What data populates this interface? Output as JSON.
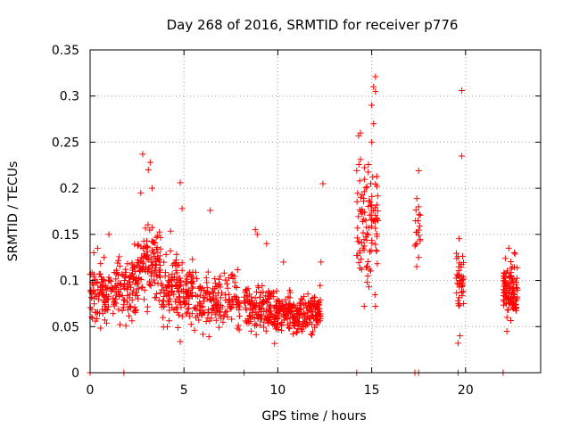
{
  "chart_data": {
    "type": "scatter",
    "title": "Day 268 of 2016, SRMTID for receiver p776",
    "xlabel": "GPS time / hours",
    "ylabel": "SRMTID / TECUs",
    "xlim": [
      0,
      24
    ],
    "ylim": [
      0,
      0.35
    ],
    "xticks": [
      0,
      5,
      10,
      15,
      20
    ],
    "xtick_labels": [
      "0",
      "5",
      "10",
      "15",
      "20"
    ],
    "yticks": [
      0,
      0.05,
      0.1,
      0.15,
      0.2,
      0.25,
      0.3,
      0.35
    ],
    "ytick_labels": [
      "0",
      "0.05",
      "0.1",
      "0.15",
      "0.2",
      "0.25",
      "0.3",
      "0.35"
    ],
    "grid": true,
    "marker": "plus",
    "series": [
      {
        "name": "SRMTID",
        "color": "#ff0000",
        "clusters": [
          {
            "x_range": [
              0.0,
              1.4
            ],
            "y_mean": 0.085,
            "y_sd": 0.025,
            "y_min": 0.022,
            "y_max": 0.14,
            "n": 110
          },
          {
            "x_range": [
              1.4,
              2.5
            ],
            "y_mean": 0.095,
            "y_sd": 0.03,
            "y_min": 0.035,
            "y_max": 0.165,
            "n": 90
          },
          {
            "x_range": [
              2.5,
              3.8
            ],
            "y_mean": 0.115,
            "y_sd": 0.035,
            "y_min": 0.04,
            "y_max": 0.21,
            "n": 120
          },
          {
            "x_range": [
              3.8,
              5.5
            ],
            "y_mean": 0.09,
            "y_sd": 0.03,
            "y_min": 0.03,
            "y_max": 0.175,
            "n": 150
          },
          {
            "x_range": [
              5.5,
              8.0
            ],
            "y_mean": 0.08,
            "y_sd": 0.025,
            "y_min": 0.025,
            "y_max": 0.16,
            "n": 160
          },
          {
            "x_range": [
              8.2,
              10.0
            ],
            "y_mean": 0.068,
            "y_sd": 0.02,
            "y_min": 0.03,
            "y_max": 0.155,
            "n": 160
          },
          {
            "x_range": [
              10.0,
              12.3
            ],
            "y_mean": 0.065,
            "y_sd": 0.017,
            "y_min": 0.025,
            "y_max": 0.12,
            "n": 210
          },
          {
            "x_range": [
              14.2,
              15.4
            ],
            "y_mean": 0.165,
            "y_sd": 0.05,
            "y_min": 0.07,
            "y_max": 0.29,
            "n": 100
          },
          {
            "x_range": [
              17.3,
              17.6
            ],
            "y_mean": 0.16,
            "y_sd": 0.025,
            "y_min": 0.115,
            "y_max": 0.2,
            "n": 16
          },
          {
            "x_range": [
              19.5,
              19.9
            ],
            "y_mean": 0.1,
            "y_sd": 0.03,
            "y_min": 0.03,
            "y_max": 0.165,
            "n": 40
          },
          {
            "x_range": [
              22.0,
              22.8
            ],
            "y_mean": 0.09,
            "y_sd": 0.025,
            "y_min": 0.04,
            "y_max": 0.14,
            "n": 110
          }
        ],
        "points": [
          [
            0.2,
            0.13
          ],
          [
            0.4,
            0.135
          ],
          [
            1.0,
            0.15
          ],
          [
            2.8,
            0.237
          ],
          [
            3.2,
            0.228
          ],
          [
            3.1,
            0.22
          ],
          [
            2.7,
            0.195
          ],
          [
            3.3,
            0.2
          ],
          [
            4.8,
            0.206
          ],
          [
            4.9,
            0.178
          ],
          [
            6.4,
            0.176
          ],
          [
            8.9,
            0.15
          ],
          [
            8.8,
            0.155
          ],
          [
            9.4,
            0.14
          ],
          [
            10.3,
            0.12
          ],
          [
            12.4,
            0.205
          ],
          [
            12.3,
            0.12
          ],
          [
            14.4,
            0.26
          ],
          [
            14.3,
            0.257
          ],
          [
            15.1,
            0.31
          ],
          [
            15.2,
            0.321
          ],
          [
            15.2,
            0.305
          ],
          [
            15.0,
            0.29
          ],
          [
            15.1,
            0.27
          ],
          [
            15.0,
            0.25
          ],
          [
            14.6,
            0.072
          ],
          [
            15.2,
            0.072
          ],
          [
            17.5,
            0.219
          ],
          [
            17.5,
            0.18
          ],
          [
            17.4,
            0.14
          ],
          [
            17.5,
            0.125
          ],
          [
            17.4,
            0.115
          ],
          [
            19.8,
            0.306
          ],
          [
            19.8,
            0.235
          ],
          [
            19.6,
            0.032
          ],
          [
            19.7,
            0.04
          ],
          [
            22.3,
            0.135
          ],
          [
            22.6,
            0.13
          ],
          [
            22.2,
            0.045
          ]
        ],
        "baseline_x": [
          0.0,
          1.8,
          8.2,
          14.2,
          17.3,
          17.5,
          19.6,
          22.0
        ]
      }
    ]
  }
}
